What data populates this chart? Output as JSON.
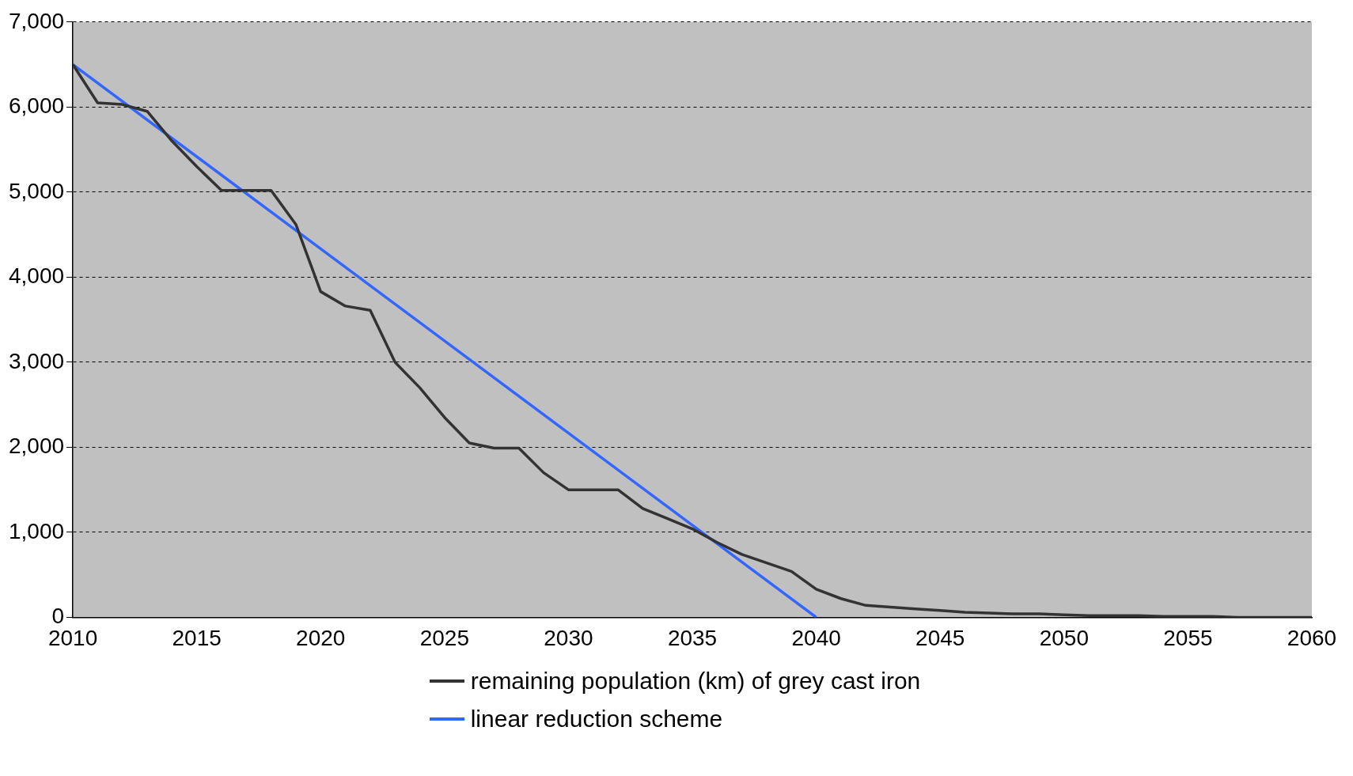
{
  "chart_data": {
    "type": "line",
    "xlim": [
      2010,
      2060
    ],
    "xticks": [
      2010,
      2015,
      2020,
      2025,
      2030,
      2035,
      2040,
      2045,
      2050,
      2055,
      2060
    ],
    "ylim": [
      0,
      7000
    ],
    "yticks": [
      0,
      {
        "value": 1000,
        "label": "1,000"
      },
      {
        "value": 2000,
        "label": "2,000"
      },
      {
        "value": 3000,
        "label": "3,000"
      },
      {
        "value": 4000,
        "label": "4,000"
      },
      {
        "value": 5000,
        "label": "5,000"
      },
      {
        "value": 6000,
        "label": "6,000"
      },
      {
        "value": 7000,
        "label": "7,000"
      }
    ],
    "grid": "y",
    "legend": "bottom",
    "marker": "none",
    "series": [
      {
        "name": "remaining population (km) of grey cast iron",
        "color": "#333333",
        "x": [
          2010,
          2011,
          2012,
          2013,
          2014,
          2015,
          2016,
          2017,
          2018,
          2019,
          2020,
          2021,
          2022,
          2023,
          2024,
          2025,
          2026,
          2027,
          2028,
          2029,
          2030,
          2031,
          2032,
          2033,
          2034,
          2035,
          2036,
          2037,
          2038,
          2039,
          2040,
          2041,
          2042,
          2043,
          2044,
          2045,
          2046,
          2047,
          2048,
          2049,
          2050,
          2051,
          2052,
          2053,
          2054,
          2055,
          2056,
          2057,
          2058,
          2059,
          2060
        ],
        "values": [
          6500,
          6050,
          6030,
          5950,
          5600,
          5300,
          5020,
          5020,
          5020,
          4620,
          3830,
          3660,
          3610,
          3000,
          2700,
          2350,
          2050,
          1990,
          1990,
          1700,
          1500,
          1500,
          1500,
          1280,
          1160,
          1040,
          880,
          740,
          640,
          540,
          330,
          220,
          140,
          120,
          100,
          80,
          60,
          50,
          40,
          40,
          30,
          20,
          20,
          20,
          10,
          10,
          10,
          0,
          0,
          0,
          0
        ]
      },
      {
        "name": "linear reduction scheme",
        "color": "#3366ff",
        "x": [
          2010,
          2040
        ],
        "values": [
          6500,
          0
        ]
      }
    ]
  }
}
